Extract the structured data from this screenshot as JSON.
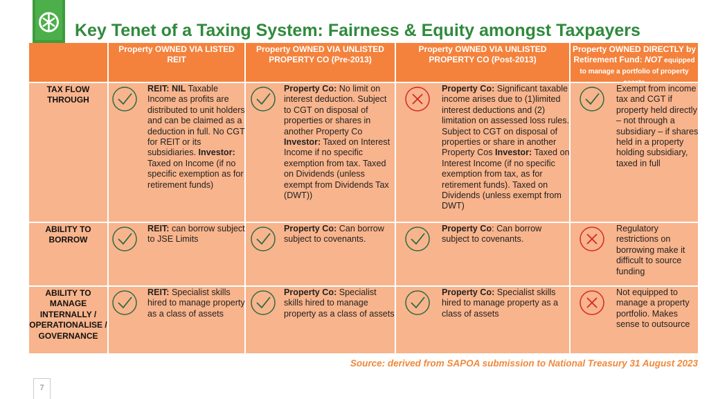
{
  "header": {
    "title": "Key Tenet of a Taxing System: Fairness & Equity amongst Taxpayers"
  },
  "table": {
    "columns": [
      [
        {
          "text": "Property OWNED VIA LISTED REIT",
          "bold": true
        }
      ],
      [
        {
          "text": "Property OWNED VIA UNLISTED PROPERTY CO  (Pre-2013)",
          "bold": true
        }
      ],
      [
        {
          "text": "Property OWNED VIA UNLISTED PROPERTY CO (Post-2013)",
          "bold": true
        }
      ],
      [
        {
          "text": "Property OWNED DIRECTLY by Retirement Fund: ",
          "bold": true
        },
        {
          "text": "NOT",
          "bold": true,
          "italic": true
        },
        {
          "text": " equipped to manage a portfolio of property assets",
          "bold": true,
          "small": true
        }
      ]
    ],
    "rows": [
      {
        "label": "TAX FLOW THROUGH",
        "cells": [
          {
            "mark": "check",
            "text": [
              {
                "text": "REIT: NIL",
                "bold": true
              },
              {
                "text": " Taxable Income as profits are distributed to unit holders and can be claimed as a deduction in full. No CGT for REIT or its subsidiaries. "
              },
              {
                "text": "Investor:",
                "bold": true
              },
              {
                "text": " Taxed on Income (if no specific exemption as for retirement funds)"
              }
            ]
          },
          {
            "mark": "check",
            "text": [
              {
                "text": "Property Co:",
                "bold": true
              },
              {
                "text": " No limit on interest deduction. Subject to CGT on disposal of properties or shares in another Property Co "
              },
              {
                "text": "Investor:",
                "bold": true
              },
              {
                "text": " Taxed on Interest Income if no specific exemption from tax. Taxed on Dividends (unless exempt from Dividends Tax (DWT))"
              }
            ]
          },
          {
            "mark": "cross",
            "text": [
              {
                "text": "Property Co:",
                "bold": true
              },
              {
                "text": " Significant taxable income arises due to (1)limited interest deductions and (2) limitation on assessed loss rules. Subject to CGT on disposal of properties or share in another Property Cos "
              },
              {
                "text": "Investor:",
                "bold": true
              },
              {
                "text": " Taxed on Interest Income (if no specific exemption from tax, as for retirement funds). Taxed on Dividends (unless exempt from DWT)"
              }
            ]
          },
          {
            "mark": "check",
            "text": [
              {
                "text": "Exempt from income tax and CGT if property held directly – not through a subsidiary – if shares held in a property holding subsidiary, taxed in full"
              }
            ]
          }
        ]
      },
      {
        "label": "ABILITY TO BORROW",
        "cells": [
          {
            "mark": "check",
            "text": [
              {
                "text": "REIT:",
                "bold": true
              },
              {
                "text": " can borrow subject to JSE Limits"
              }
            ]
          },
          {
            "mark": "check",
            "text": [
              {
                "text": "Property Co:",
                "bold": true
              },
              {
                "text": " Can borrow subject to covenants."
              }
            ]
          },
          {
            "mark": "check",
            "text": [
              {
                "text": "Property Co",
                "bold": true
              },
              {
                "text": ": Can borrow subject to covenants."
              }
            ]
          },
          {
            "mark": "cross",
            "text": [
              {
                "text": "Regulatory restrictions on borrowing make it difficult to source funding"
              }
            ]
          }
        ]
      },
      {
        "label": "ABILITY TO MANAGE INTERNALLY / OPERATIONALISE / GOVERNANCE",
        "cells": [
          {
            "mark": "check",
            "text": [
              {
                "text": "REIT:",
                "bold": true
              },
              {
                "text": " Specialist skills hired to manage property as a class of assets"
              }
            ]
          },
          {
            "mark": "check",
            "text": [
              {
                "text": "Property Co:",
                "bold": true
              },
              {
                "text": " Specialist skills hired to manage property as a class of assets"
              }
            ]
          },
          {
            "mark": "check",
            "text": [
              {
                "text": "Property Co:",
                "bold": true
              },
              {
                "text": " Specialist skills hired to manage property as a class of assets"
              }
            ]
          },
          {
            "mark": "cross",
            "text": [
              {
                "text": "Not equipped to manage a property portfolio. Makes sense to outsource"
              }
            ]
          }
        ]
      }
    ]
  },
  "source": "Source: derived from SAPOA submission to National Treasury 31 August 2023",
  "page_number": "7"
}
